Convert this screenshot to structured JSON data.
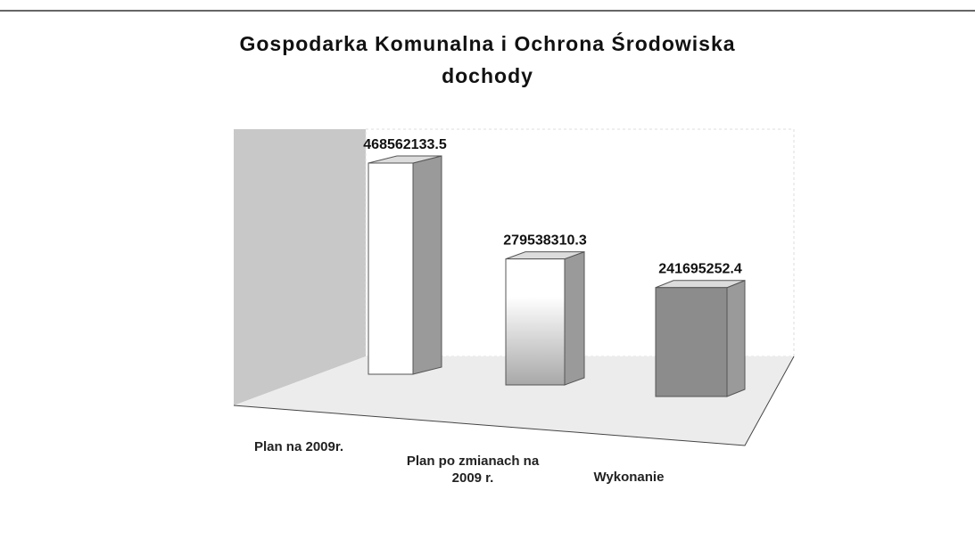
{
  "chart_data": {
    "type": "bar3d",
    "title": "Gospodarka Komunalna i Ochrona Środowiska",
    "subtitle": "dochody",
    "categories": [
      "Plan na 2009r.",
      "Plan po zmianach na 2009 r.",
      "Wykonanie"
    ],
    "values": [
      468562133.5,
      279538310.3,
      241695252.4
    ],
    "colors": [
      "#ffffff",
      "#eeeeee",
      "#8c8c8c"
    ]
  }
}
